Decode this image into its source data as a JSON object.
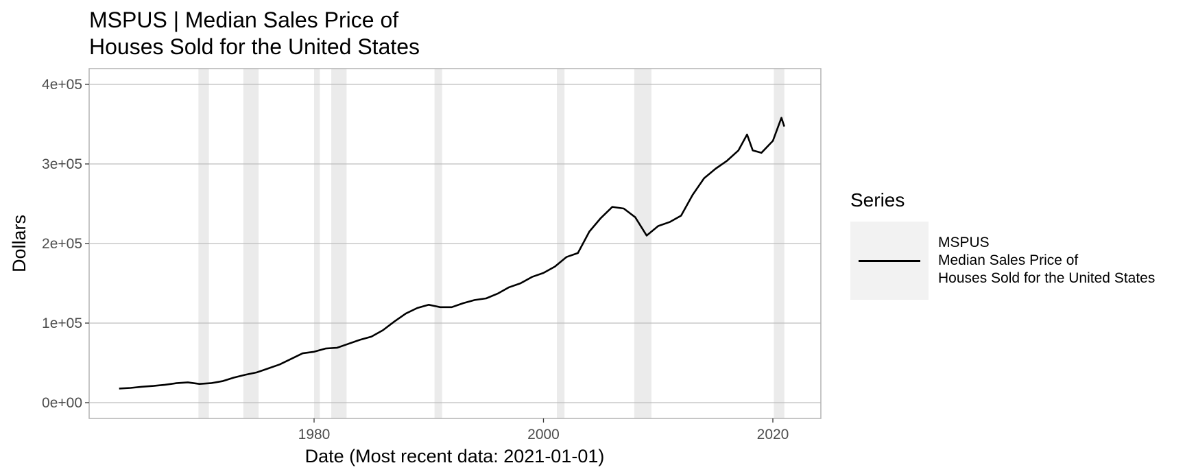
{
  "chart_data": {
    "type": "line",
    "title": "MSPUS | Median Sales Price of\nHouses Sold for the United States",
    "title_lines": [
      "MSPUS | Median Sales Price of",
      "Houses Sold for the United States"
    ],
    "xlabel": "Date (Most recent data: 2021-01-01)",
    "ylabel": "Dollars",
    "x_ticks": [
      "1980",
      "2000",
      "2020"
    ],
    "y_ticks": [
      "0e+00",
      "1e+05",
      "2e+05",
      "3e+05",
      "4e+05"
    ],
    "xlim": [
      "1963-01-01",
      "2021-01-01"
    ],
    "ylim": [
      0,
      400000
    ],
    "grid": true,
    "legend_placement": "right",
    "legend_title": "Series",
    "series": [
      {
        "name": "MSPUS\nMedian Sales Price of\nHouses Sold for the United States",
        "name_lines": [
          "MSPUS",
          "Median Sales Price of",
          "Houses Sold for the United States"
        ],
        "color": "#000000",
        "points": [
          [
            "1963-01-01",
            17800
          ],
          [
            "1964-01-01",
            18500
          ],
          [
            "1965-01-01",
            20000
          ],
          [
            "1966-01-01",
            21000
          ],
          [
            "1967-01-01",
            22500
          ],
          [
            "1968-01-01",
            24500
          ],
          [
            "1969-01-01",
            25500
          ],
          [
            "1970-01-01",
            23500
          ],
          [
            "1971-01-01",
            24500
          ],
          [
            "1972-01-01",
            27000
          ],
          [
            "1973-01-01",
            31500
          ],
          [
            "1974-01-01",
            35000
          ],
          [
            "1975-01-01",
            38000
          ],
          [
            "1976-01-01",
            43000
          ],
          [
            "1977-01-01",
            48000
          ],
          [
            "1978-01-01",
            55000
          ],
          [
            "1979-01-01",
            62000
          ],
          [
            "1980-01-01",
            64000
          ],
          [
            "1981-01-01",
            68000
          ],
          [
            "1982-01-01",
            69000
          ],
          [
            "1983-01-01",
            74000
          ],
          [
            "1984-01-01",
            79000
          ],
          [
            "1985-01-01",
            83000
          ],
          [
            "1986-01-01",
            91000
          ],
          [
            "1987-01-01",
            102000
          ],
          [
            "1988-01-01",
            112000
          ],
          [
            "1989-01-01",
            119000
          ],
          [
            "1990-01-01",
            123000
          ],
          [
            "1991-01-01",
            120000
          ],
          [
            "1992-01-01",
            120000
          ],
          [
            "1993-01-01",
            125000
          ],
          [
            "1994-01-01",
            129000
          ],
          [
            "1995-01-01",
            131000
          ],
          [
            "1996-01-01",
            137000
          ],
          [
            "1997-01-01",
            145000
          ],
          [
            "1998-01-01",
            150000
          ],
          [
            "1999-01-01",
            158000
          ],
          [
            "2000-01-01",
            163000
          ],
          [
            "2001-01-01",
            171000
          ],
          [
            "2002-01-01",
            183000
          ],
          [
            "2003-01-01",
            188000
          ],
          [
            "2004-01-01",
            215000
          ],
          [
            "2005-01-01",
            232000
          ],
          [
            "2006-01-01",
            246000
          ],
          [
            "2007-01-01",
            244000
          ],
          [
            "2008-01-01",
            233000
          ],
          [
            "2009-01-01",
            210000
          ],
          [
            "2010-01-01",
            222000
          ],
          [
            "2011-01-01",
            227000
          ],
          [
            "2012-01-01",
            235000
          ],
          [
            "2013-01-01",
            261000
          ],
          [
            "2014-01-01",
            282000
          ],
          [
            "2015-01-01",
            294000
          ],
          [
            "2016-01-01",
            304000
          ],
          [
            "2017-01-01",
            317000
          ],
          [
            "2017-10-01",
            337000
          ],
          [
            "2018-04-01",
            317000
          ],
          [
            "2019-01-01",
            314000
          ],
          [
            "2020-01-01",
            329000
          ],
          [
            "2020-10-01",
            358000
          ],
          [
            "2021-01-01",
            347000
          ]
        ]
      }
    ],
    "recession_bands": [
      [
        "1969-12-01",
        "1970-11-01"
      ],
      [
        "1973-11-01",
        "1975-03-01"
      ],
      [
        "1980-01-01",
        "1980-07-01"
      ],
      [
        "1981-07-01",
        "1982-11-01"
      ],
      [
        "1990-07-01",
        "1991-03-01"
      ],
      [
        "2001-03-01",
        "2001-11-01"
      ],
      [
        "2007-12-01",
        "2009-06-01"
      ],
      [
        "2020-02-01",
        "2021-01-01"
      ]
    ],
    "recession_color": "#ebebeb",
    "grid_color": "#bdbdbd"
  }
}
